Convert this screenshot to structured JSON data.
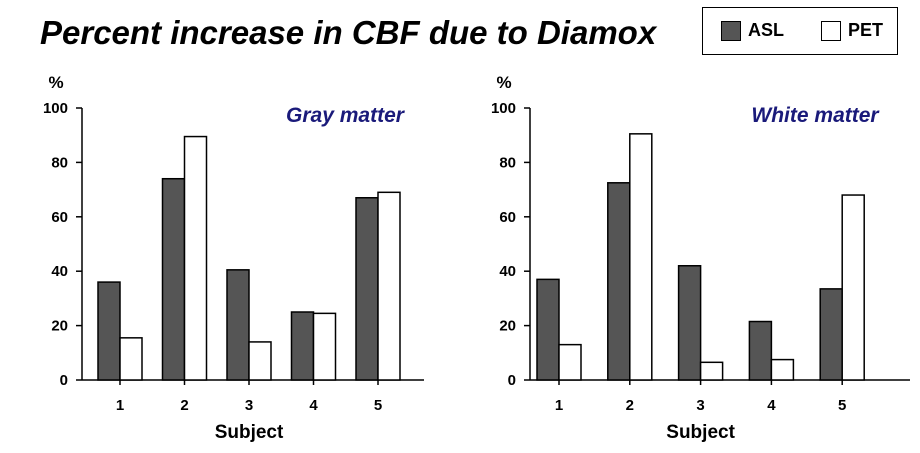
{
  "title": "Percent increase in CBF due to Diamox",
  "legend": {
    "items": [
      {
        "label": "ASL",
        "color": "#555555"
      },
      {
        "label": "PET",
        "color": "#ffffff"
      }
    ]
  },
  "chart_data": [
    {
      "type": "bar",
      "title": "Gray matter",
      "title_color": "#1a1a7a",
      "categories": [
        "1",
        "2",
        "3",
        "4",
        "5"
      ],
      "series": [
        {
          "name": "ASL",
          "values": [
            36,
            74,
            40.5,
            25,
            67
          ]
        },
        {
          "name": "PET",
          "values": [
            15.5,
            89.5,
            14,
            24.5,
            69
          ]
        }
      ],
      "xlabel": "Subject",
      "ylabel": "%",
      "ylim": [
        0,
        100
      ],
      "yticks": [
        0,
        20,
        40,
        60,
        80,
        100
      ]
    },
    {
      "type": "bar",
      "title": "White matter",
      "title_color": "#1a1a7a",
      "categories": [
        "1",
        "2",
        "3",
        "4",
        "5"
      ],
      "series": [
        {
          "name": "ASL",
          "values": [
            37,
            72.5,
            42,
            21.5,
            33.5
          ]
        },
        {
          "name": "PET",
          "values": [
            13,
            90.5,
            6.5,
            7.5,
            68
          ]
        }
      ],
      "xlabel": "Subject",
      "ylabel": "%",
      "ylim": [
        0,
        100
      ],
      "yticks": [
        0,
        20,
        40,
        60,
        80,
        100
      ]
    }
  ]
}
